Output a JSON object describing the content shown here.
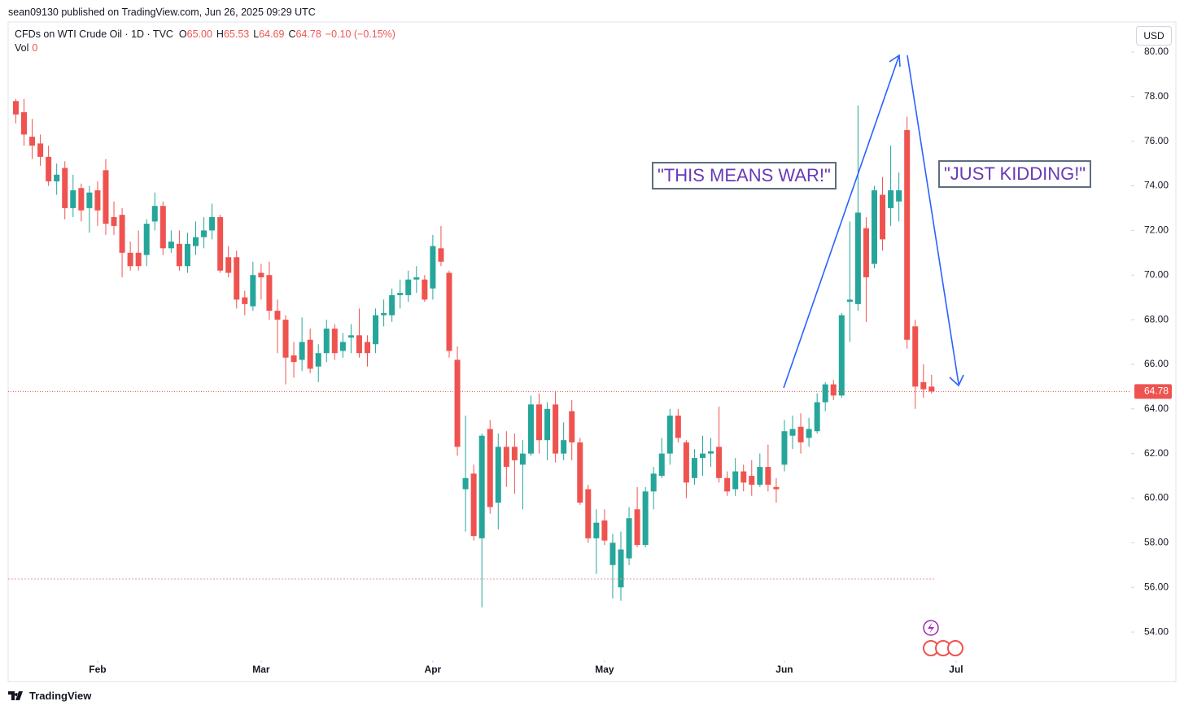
{
  "header": {
    "published": "sean09130 published on TradingView.com, Jun 26, 2025 09:29 UTC",
    "symbol": "CFDs on WTI Crude Oil · 1D · TVC",
    "ohlc": [
      {
        "key": "O",
        "value": "65.00"
      },
      {
        "key": "H",
        "value": "65.53"
      },
      {
        "key": "L",
        "value": "64.69"
      },
      {
        "key": "C",
        "value": "64.78"
      }
    ],
    "change": "−0.10 (−0.15%)",
    "vol_label": "Vol",
    "vol_value": "0",
    "currency": "USD"
  },
  "footer": {
    "brand": "TradingView"
  },
  "chart_data": {
    "type": "candlestick",
    "up_color": "#26a69a",
    "down_color": "#ef5350",
    "annotations": [
      "\"THIS MEANS WAR!\"",
      "\"JUST KIDDING!\""
    ],
    "open": [
      77.8,
      77.3,
      76.2,
      75.9,
      75.3,
      74.2,
      74.8,
      73.0,
      73.9,
      73.0,
      73.8,
      74.7,
      72.6,
      72.7,
      71.0,
      71.0,
      70.9,
      72.4,
      73.1,
      71.2,
      71.4,
      70.4,
      71.3,
      71.7,
      72.0,
      72.6,
      70.8,
      70.8,
      69.0,
      68.6,
      70.1,
      70.0,
      68.4,
      68.0,
      66.4,
      66.2,
      67.1,
      65.9,
      66.5,
      67.6,
      66.6,
      67.2,
      67.3,
      67.0,
      66.9,
      68.2,
      68.2,
      69.1,
      69.1,
      69.8,
      69.8,
      69.4,
      71.2,
      70.1,
      66.2,
      60.4,
      61.1,
      58.2,
      63.1,
      59.8,
      62.3,
      62.3,
      61.5,
      62.0,
      64.2,
      62.6,
      64.2,
      62.0,
      63.9,
      62.5,
      60.4,
      58.2,
      59.0,
      57.0,
      56.0,
      57.3,
      59.5,
      57.9,
      60.3,
      61.0,
      62.0,
      63.7,
      62.5,
      60.9,
      61.8,
      62.0,
      62.3,
      60.9,
      60.4,
      61.2,
      61.0,
      60.6,
      61.4,
      60.5,
      61.5,
      62.8,
      63.2,
      62.7,
      63.0,
      64.3,
      65.1,
      64.6,
      68.8,
      68.7,
      72.1,
      70.5,
      73.6,
      73.0,
      73.3,
      76.5,
      67.7,
      65.2,
      65.0
    ],
    "high": [
      77.9,
      77.9,
      77.0,
      76.3,
      75.8,
      75.0,
      75.1,
      74.5,
      74.1,
      74.0,
      74.2,
      75.2,
      73.3,
      73.0,
      71.5,
      72.0,
      72.5,
      73.7,
      73.3,
      72.0,
      72.0,
      71.9,
      72.4,
      72.6,
      73.2,
      72.7,
      71.3,
      71.1,
      69.3,
      70.6,
      70.5,
      70.6,
      68.9,
      68.2,
      67.0,
      68.1,
      67.6,
      66.9,
      68.0,
      67.8,
      67.4,
      67.8,
      68.5,
      67.3,
      68.5,
      68.9,
      69.4,
      69.8,
      70.2,
      70.4,
      70.0,
      71.8,
      72.2,
      70.2,
      66.8,
      63.7,
      61.5,
      62.9,
      63.5,
      62.9,
      63.0,
      62.9,
      62.6,
      64.6,
      64.7,
      64.3,
      64.8,
      63.4,
      64.4,
      62.7,
      60.6,
      59.5,
      59.5,
      58.4,
      58.5,
      59.6,
      60.5,
      60.5,
      61.4,
      62.7,
      64.0,
      64.0,
      62.6,
      62.2,
      62.8,
      62.7,
      64.1,
      61.2,
      61.8,
      61.5,
      61.7,
      62.0,
      62.4,
      60.9,
      63.5,
      63.7,
      63.8,
      63.6,
      64.7,
      65.2,
      65.3,
      68.3,
      72.4,
      77.6,
      72.6,
      74.0,
      74.4,
      75.8,
      74.6,
      77.1,
      68.0,
      66.0,
      65.53
    ],
    "low": [
      76.8,
      75.8,
      75.2,
      74.9,
      74.0,
      73.6,
      72.5,
      72.6,
      72.4,
      71.9,
      72.2,
      71.8,
      71.8,
      69.9,
      70.2,
      70.2,
      70.4,
      72.0,
      70.9,
      71.0,
      70.2,
      70.1,
      70.9,
      71.2,
      71.6,
      70.1,
      69.9,
      68.5,
      68.2,
      68.4,
      68.9,
      68.0,
      66.5,
      65.1,
      65.4,
      65.7,
      65.6,
      65.2,
      66.1,
      66.2,
      66.3,
      66.5,
      66.3,
      65.9,
      66.5,
      67.7,
      67.9,
      68.5,
      68.8,
      69.2,
      68.8,
      68.9,
      70.4,
      66.3,
      61.9,
      58.5,
      58.1,
      55.1,
      59.3,
      58.6,
      60.5,
      60.2,
      59.5,
      61.9,
      62.0,
      61.7,
      61.6,
      61.7,
      61.7,
      59.7,
      58.0,
      56.6,
      57.9,
      55.5,
      55.4,
      57.0,
      57.8,
      57.8,
      59.5,
      60.9,
      61.5,
      62.5,
      60.0,
      60.6,
      61.0,
      61.4,
      60.7,
      60.1,
      60.1,
      60.3,
      60.1,
      60.5,
      60.3,
      59.8,
      61.2,
      62.2,
      62.0,
      62.3,
      62.9,
      63.9,
      64.4,
      64.5,
      67.0,
      68.4,
      67.9,
      70.3,
      71.1,
      72.2,
      72.4,
      66.7,
      64.0,
      64.5,
      64.69
    ],
    "close": [
      77.2,
      76.3,
      75.8,
      75.3,
      74.2,
      74.5,
      73.0,
      73.8,
      72.9,
      73.7,
      72.9,
      72.3,
      72.2,
      71.0,
      70.4,
      70.4,
      72.3,
      73.1,
      71.2,
      71.5,
      70.4,
      71.4,
      71.7,
      72.0,
      72.6,
      70.2,
      70.1,
      68.9,
      68.7,
      70.0,
      69.9,
      68.4,
      68.0,
      66.3,
      66.1,
      67.0,
      65.8,
      66.5,
      67.6,
      66.5,
      67.0,
      67.3,
      66.5,
      66.5,
      68.2,
      68.3,
      69.1,
      69.2,
      69.8,
      69.9,
      68.9,
      71.3,
      70.6,
      66.6,
      62.3,
      60.9,
      58.3,
      62.8,
      59.6,
      62.3,
      61.4,
      61.7,
      62.0,
      64.2,
      62.6,
      64.0,
      62.0,
      62.6,
      62.5,
      59.8,
      58.2,
      58.9,
      58.1,
      58.0,
      57.7,
      59.1,
      57.9,
      60.3,
      61.1,
      62.0,
      63.7,
      62.7,
      60.7,
      61.8,
      62.0,
      62.1,
      60.9,
      60.3,
      61.2,
      60.7,
      60.6,
      61.4,
      60.6,
      60.4,
      63.0,
      63.1,
      62.5,
      63.1,
      64.3,
      65.1,
      64.6,
      68.2,
      68.9,
      72.8,
      69.9,
      73.8,
      71.6,
      73.8,
      73.8,
      67.1,
      65.0,
      64.88,
      64.78
    ],
    "xlim": [
      -0.94,
      136.4
    ],
    "xticks": [
      {
        "value": 10,
        "label": "Feb"
      },
      {
        "value": 30,
        "label": "Mar"
      },
      {
        "value": 51,
        "label": "Apr"
      },
      {
        "value": 72,
        "label": "May"
      },
      {
        "value": 94,
        "label": "Jun"
      },
      {
        "value": 115,
        "label": "Jul"
      }
    ],
    "ylim": [
      52.8,
      81.31
    ],
    "yticks": [
      {
        "value": 54,
        "label": "54.00"
      },
      {
        "value": 56,
        "label": "56.00"
      },
      {
        "value": 58,
        "label": "58.00"
      },
      {
        "value": 60,
        "label": "60.00"
      },
      {
        "value": 62,
        "label": "62.00"
      },
      {
        "value": 64,
        "label": "64.00"
      },
      {
        "value": 66,
        "label": "66.00"
      },
      {
        "value": 68,
        "label": "68.00"
      },
      {
        "value": 70,
        "label": "70.00"
      },
      {
        "value": 72,
        "label": "72.00"
      },
      {
        "value": 74,
        "label": "74.00"
      },
      {
        "value": 76,
        "label": "76.00"
      },
      {
        "value": 78,
        "label": "78.00"
      },
      {
        "value": 80,
        "label": "80.00"
      }
    ]
  }
}
